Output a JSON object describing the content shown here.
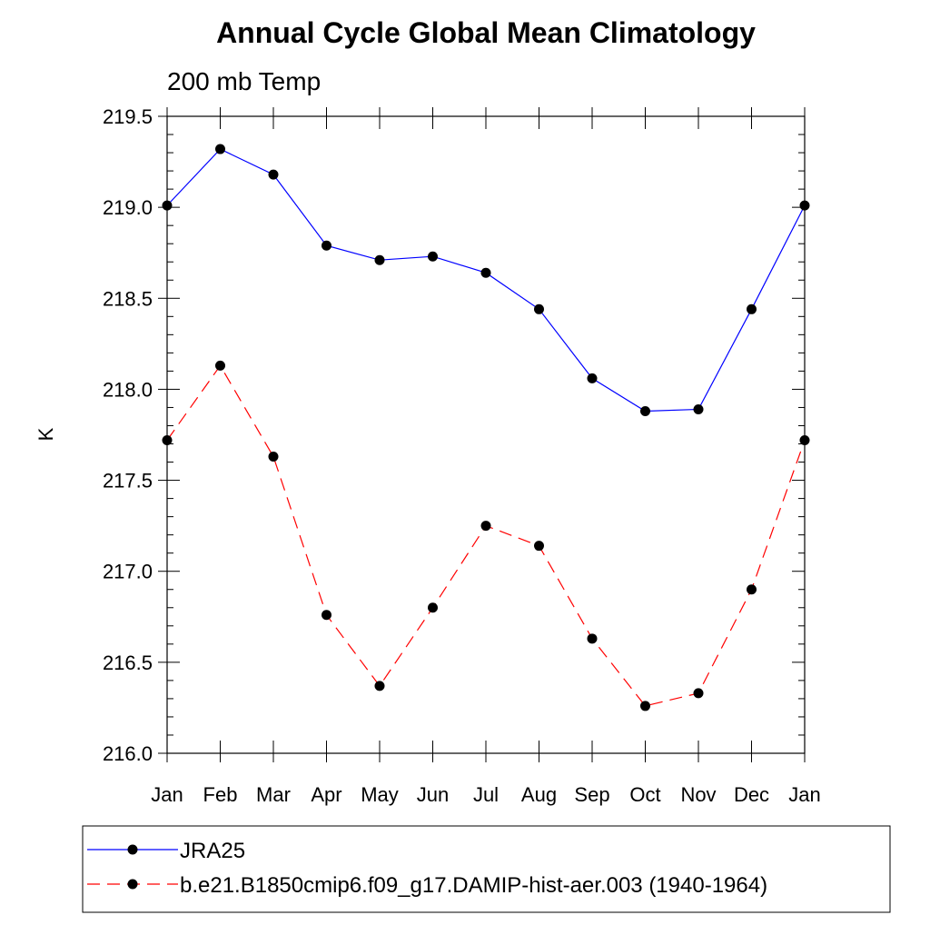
{
  "chart_data": {
    "type": "line",
    "title": "Annual Cycle Global Mean Climatology",
    "subtitle": "200 mb Temp",
    "xlabel": "",
    "ylabel": "K",
    "ylim": [
      216.0,
      219.5
    ],
    "yticks": [
      216.0,
      216.5,
      217.0,
      217.5,
      218.0,
      218.5,
      219.0,
      219.5
    ],
    "ytick_labels": [
      "216.0",
      "216.5",
      "217.0",
      "217.5",
      "218.0",
      "218.5",
      "219.0",
      "219.5"
    ],
    "categories": [
      "Jan",
      "Feb",
      "Mar",
      "Apr",
      "May",
      "Jun",
      "Jul",
      "Aug",
      "Sep",
      "Oct",
      "Nov",
      "Dec",
      "Jan"
    ],
    "grid": false,
    "legend_position": "bottom",
    "series": [
      {
        "name": "JRA25",
        "color": "#0000ff",
        "line_style": "solid",
        "marker": "filled-circle",
        "values": [
          219.01,
          219.32,
          219.18,
          218.79,
          218.71,
          218.73,
          218.64,
          218.44,
          218.06,
          217.88,
          217.89,
          218.44,
          219.01
        ]
      },
      {
        "name": "b.e21.B1850cmip6.f09_g17.DAMIP-hist-aer.003 (1940-1964)",
        "color": "#ff0000",
        "line_style": "dashed",
        "marker": "filled-circle",
        "values": [
          217.72,
          218.13,
          217.63,
          216.76,
          216.37,
          216.8,
          217.25,
          217.14,
          216.63,
          216.26,
          216.33,
          216.9,
          217.72
        ]
      }
    ]
  }
}
